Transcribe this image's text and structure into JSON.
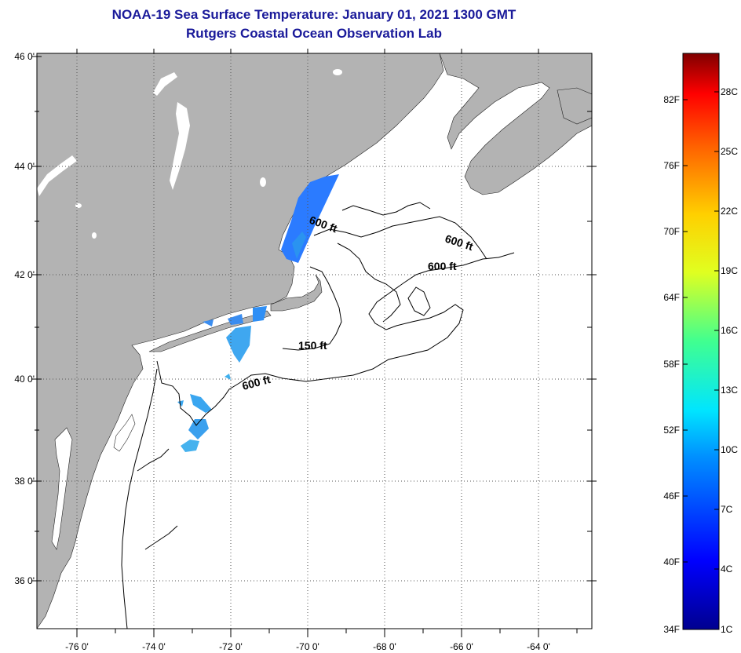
{
  "title": {
    "line1": "NOAA-19 Sea Surface Temperature:  January 01, 2021 1300 GMT",
    "line2": "Rutgers Coastal Ocean Observation Lab"
  },
  "map": {
    "lat_labels": [
      "46 0'",
      "44 0'",
      "42 0'",
      "40 0'",
      "38 0'",
      "36 0'"
    ],
    "lon_labels": [
      "-76 0'",
      "-74 0'",
      "-72 0'",
      "-70 0'",
      "-68 0'",
      "-66 0'",
      "-64 0'"
    ],
    "contour_labels": [
      "600 ft",
      "600 ft",
      "600 ft",
      "150 ft",
      "600 ft"
    ],
    "colors": {
      "land": "#b3b3b3",
      "ocean": "#ffffff",
      "grid": "#555555"
    }
  },
  "colorbar": {
    "fahrenheit_labels": [
      "82F",
      "76F",
      "70F",
      "64F",
      "58F",
      "52F",
      "46F",
      "40F",
      "34F"
    ],
    "celsius_labels": [
      "28C",
      "25C",
      "22C",
      "19C",
      "16C",
      "13C",
      "10C",
      "7C",
      "4C",
      "1C"
    ]
  }
}
